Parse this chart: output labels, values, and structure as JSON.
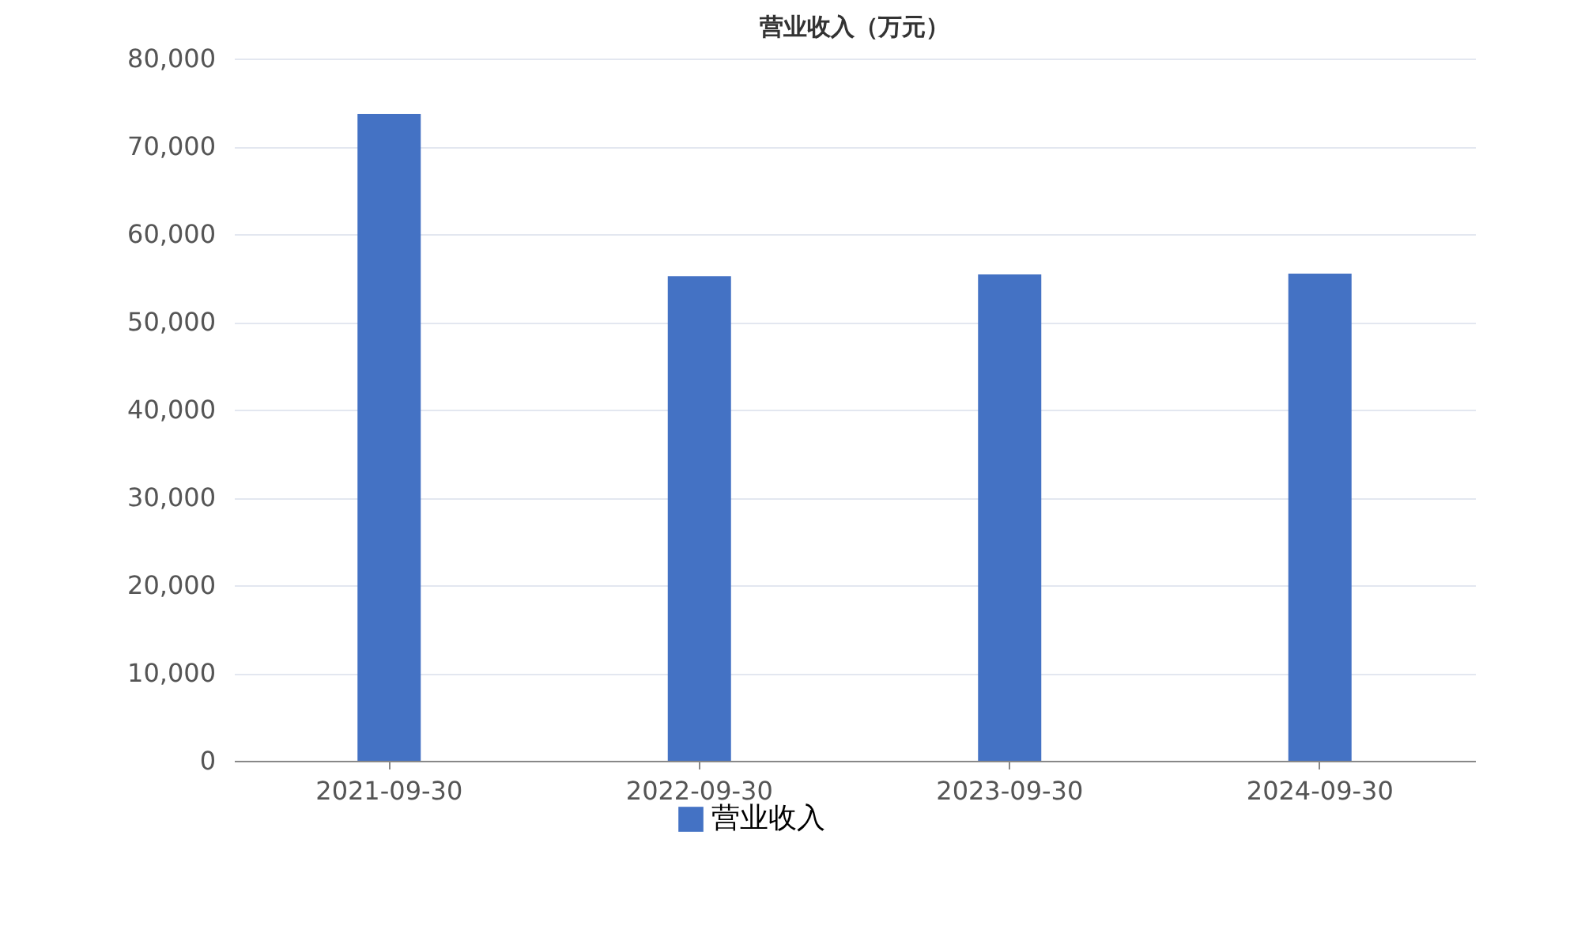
{
  "chart_data": {
    "type": "bar",
    "title": "营业收入（万元）",
    "categories": [
      "2021-09-30",
      "2022-09-30",
      "2023-09-30",
      "2024-09-30"
    ],
    "series": [
      {
        "name": "营业收入",
        "color": "#4472c4",
        "values": [
          73700,
          55200,
          55400,
          55500
        ]
      }
    ],
    "ylim": [
      0,
      80000
    ],
    "yticks": [
      0,
      {
        "value": 10000,
        "label": "10,000"
      },
      {
        "value": 20000,
        "label": "20,000"
      },
      {
        "value": 30000,
        "label": "30,000"
      },
      {
        "value": 40000,
        "label": "40,000"
      },
      {
        "value": 50000,
        "label": "50,000"
      },
      {
        "value": 60000,
        "label": "60,000"
      },
      {
        "value": 70000,
        "label": "70,000"
      },
      {
        "value": 80000,
        "label": "80,000"
      }
    ],
    "grid": "y",
    "legend": "bottom"
  }
}
